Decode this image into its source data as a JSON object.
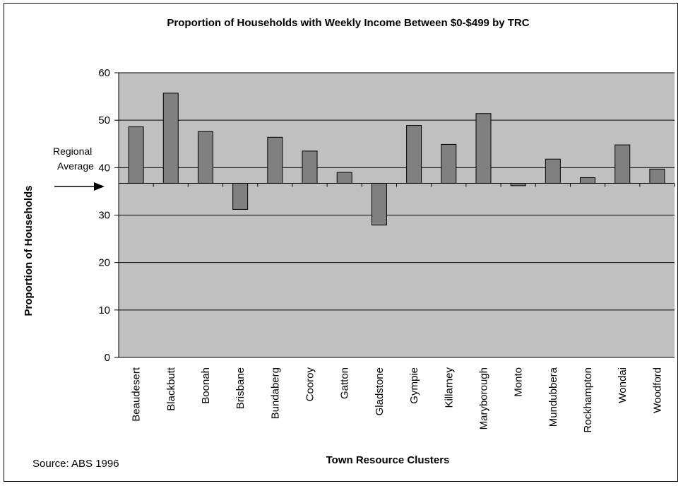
{
  "chart_data": {
    "type": "bar",
    "title": "Proportion of Households with Weekly Income Between $0-$499 by TRC",
    "xlabel": "Town Resource Clusters",
    "ylabel": "Proportion of Households",
    "ylim": [
      0,
      60
    ],
    "yticks": [
      0,
      10,
      20,
      30,
      40,
      50,
      60
    ],
    "grid": true,
    "baseline": 36.7,
    "baseline_label": [
      "Regional",
      "Average"
    ],
    "categories": [
      "Beaudesert",
      "Blackbutt",
      "Boonah",
      "Brisbane",
      "Bundaberg",
      "Cooroy",
      "Gatton",
      "Gladstone",
      "Gympie",
      "Killarney",
      "Maryborough",
      "Monto",
      "Mundubbera",
      "Rockhampton",
      "Wondai",
      "Woodford"
    ],
    "values": [
      48.6,
      55.7,
      47.6,
      31.2,
      46.4,
      43.5,
      39.0,
      27.9,
      48.9,
      44.9,
      51.4,
      36.2,
      41.8,
      37.9,
      44.8,
      39.7
    ],
    "colors": {
      "plot_bg": "#c0c0c0",
      "bar_fill": "#808080",
      "bar_stroke": "#000000",
      "grid": "#000000"
    }
  },
  "source": "Source: ABS 1996"
}
